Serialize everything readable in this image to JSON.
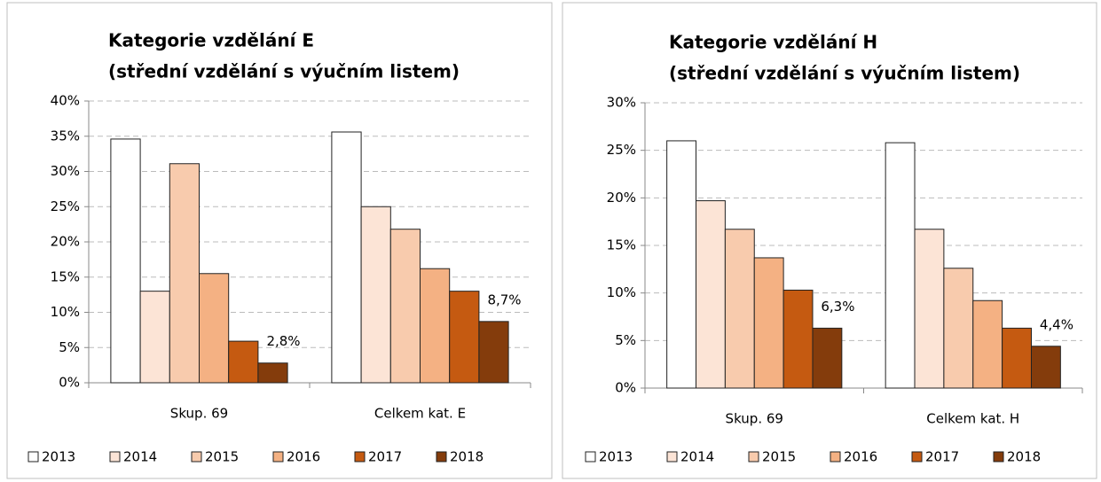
{
  "chart_data": [
    {
      "type": "bar",
      "title": "Kategorie vzdělání E",
      "subtitle": "(střední vzdělání s výučním listem)",
      "categories": [
        "Skup. 69",
        "Celkem kat. E"
      ],
      "series": [
        {
          "name": "2013",
          "color": "#ffffff",
          "values": [
            34.6,
            35.6
          ]
        },
        {
          "name": "2014",
          "color": "#fce4d6",
          "values": [
            13.0,
            25.0
          ]
        },
        {
          "name": "2015",
          "color": "#f8cbad",
          "values": [
            31.1,
            21.8
          ]
        },
        {
          "name": "2016",
          "color": "#f4b183",
          "values": [
            15.5,
            16.2
          ]
        },
        {
          "name": "2017",
          "color": "#c55a11",
          "values": [
            5.9,
            13.0
          ]
        },
        {
          "name": "2018",
          "color": "#843c0c",
          "values": [
            2.8,
            8.7
          ],
          "value_labels": [
            "2,8%",
            "8,7%"
          ]
        }
      ],
      "ylim": [
        0,
        40
      ],
      "yticks": [
        {
          "value": 0,
          "label": "0%"
        },
        {
          "value": 5,
          "label": "5%"
        },
        {
          "value": 10,
          "label": "10%"
        },
        {
          "value": 15,
          "label": "15%"
        },
        {
          "value": 20,
          "label": "20%"
        },
        {
          "value": 25,
          "label": "25%"
        },
        {
          "value": 30,
          "label": "30%"
        },
        {
          "value": 35,
          "label": "35%"
        },
        {
          "value": 40,
          "label": "40%"
        }
      ],
      "grid": true,
      "legend": "bottom"
    },
    {
      "type": "bar",
      "title": "Kategorie vzdělání H",
      "subtitle": "(střední vzdělání s výučním listem)",
      "categories": [
        "Skup. 69",
        "Celkem kat. H"
      ],
      "series": [
        {
          "name": "2013",
          "color": "#ffffff",
          "values": [
            26.0,
            25.8
          ]
        },
        {
          "name": "2014",
          "color": "#fce4d6",
          "values": [
            19.7,
            16.7
          ]
        },
        {
          "name": "2015",
          "color": "#f8cbad",
          "values": [
            16.7,
            12.6
          ]
        },
        {
          "name": "2016",
          "color": "#f4b183",
          "values": [
            13.7,
            9.2
          ]
        },
        {
          "name": "2017",
          "color": "#c55a11",
          "values": [
            10.3,
            6.3
          ]
        },
        {
          "name": "2018",
          "color": "#843c0c",
          "values": [
            6.3,
            4.4
          ],
          "value_labels": [
            "6,3%",
            "4,4%"
          ]
        }
      ],
      "ylim": [
        0,
        30
      ],
      "yticks": [
        {
          "value": 0,
          "label": "0%"
        },
        {
          "value": 5,
          "label": "5%"
        },
        {
          "value": 10,
          "label": "10%"
        },
        {
          "value": 15,
          "label": "15%"
        },
        {
          "value": 20,
          "label": "20%"
        },
        {
          "value": 25,
          "label": "25%"
        },
        {
          "value": 30,
          "label": "30%"
        }
      ],
      "grid": true,
      "legend": "bottom"
    }
  ]
}
